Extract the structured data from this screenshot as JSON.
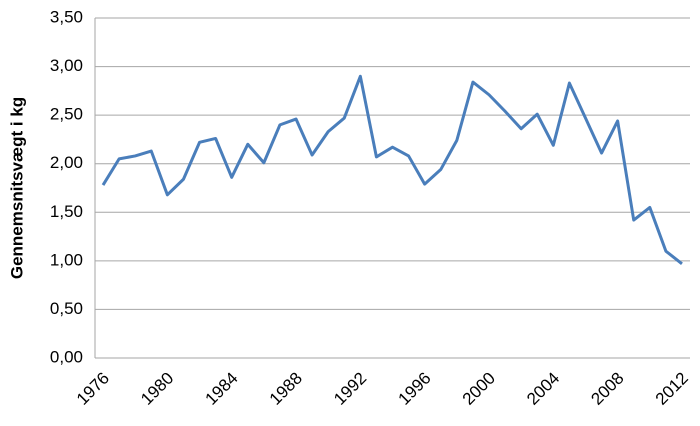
{
  "chart_data": {
    "type": "line",
    "y_label": "Gennemsnitsvægt i kg",
    "categories": [
      "1976",
      null,
      null,
      null,
      "1980",
      null,
      null,
      null,
      "1984",
      null,
      null,
      null,
      "1988",
      null,
      null,
      null,
      "1992",
      null,
      null,
      null,
      "1996",
      null,
      null,
      null,
      "2000",
      null,
      null,
      null,
      "2004",
      null,
      null,
      null,
      "2008",
      null,
      null,
      null,
      "2012"
    ],
    "series": [
      {
        "color": "#4a7ebb",
        "values": [
          1.78,
          2.05,
          2.08,
          2.13,
          1.68,
          1.84,
          2.22,
          2.26,
          1.86,
          2.2,
          2.01,
          2.4,
          2.46,
          2.09,
          2.33,
          2.47,
          2.9,
          2.07,
          2.17,
          2.08,
          1.79,
          1.94,
          2.24,
          2.84,
          2.71,
          2.54,
          2.36,
          2.51,
          2.19,
          2.83,
          2.47,
          2.11,
          2.44,
          1.42,
          1.55,
          1.1,
          0.97
        ]
      }
    ],
    "ylim": [
      0,
      3.5
    ],
    "yticks": [
      {
        "value": 0,
        "label": "0,00"
      },
      {
        "value": 0.5,
        "label": "0,50"
      },
      {
        "value": 1,
        "label": "1,00"
      },
      {
        "value": 1.5,
        "label": "1,50"
      },
      {
        "value": 2,
        "label": "2,00"
      },
      {
        "value": 2.5,
        "label": "2,50"
      },
      {
        "value": 3,
        "label": "3,00"
      },
      {
        "value": 3.5,
        "label": "3,50"
      }
    ],
    "grid": true
  }
}
